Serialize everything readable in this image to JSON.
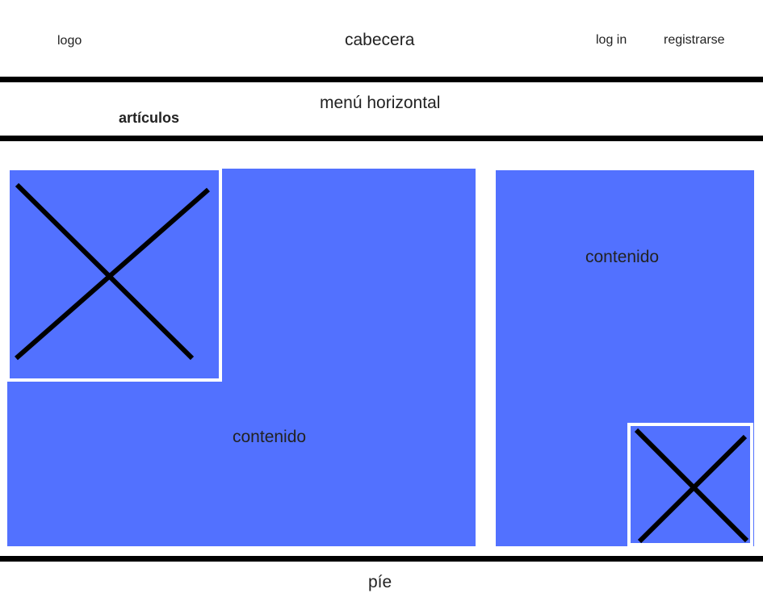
{
  "header": {
    "logo": "logo",
    "title": "cabecera",
    "login": "log in",
    "register": "registrarse"
  },
  "menu": {
    "title": "menú horizontal",
    "items": [
      "artículos"
    ]
  },
  "main": {
    "content_label": "contenido"
  },
  "sidebar": {
    "content_label": "contenido"
  },
  "footer": {
    "label": "píe"
  },
  "colors": {
    "block": "#5271ff",
    "rule": "#000000",
    "text": "#222222"
  },
  "icons": [
    "image-placeholder-icon",
    "image-placeholder-icon"
  ]
}
